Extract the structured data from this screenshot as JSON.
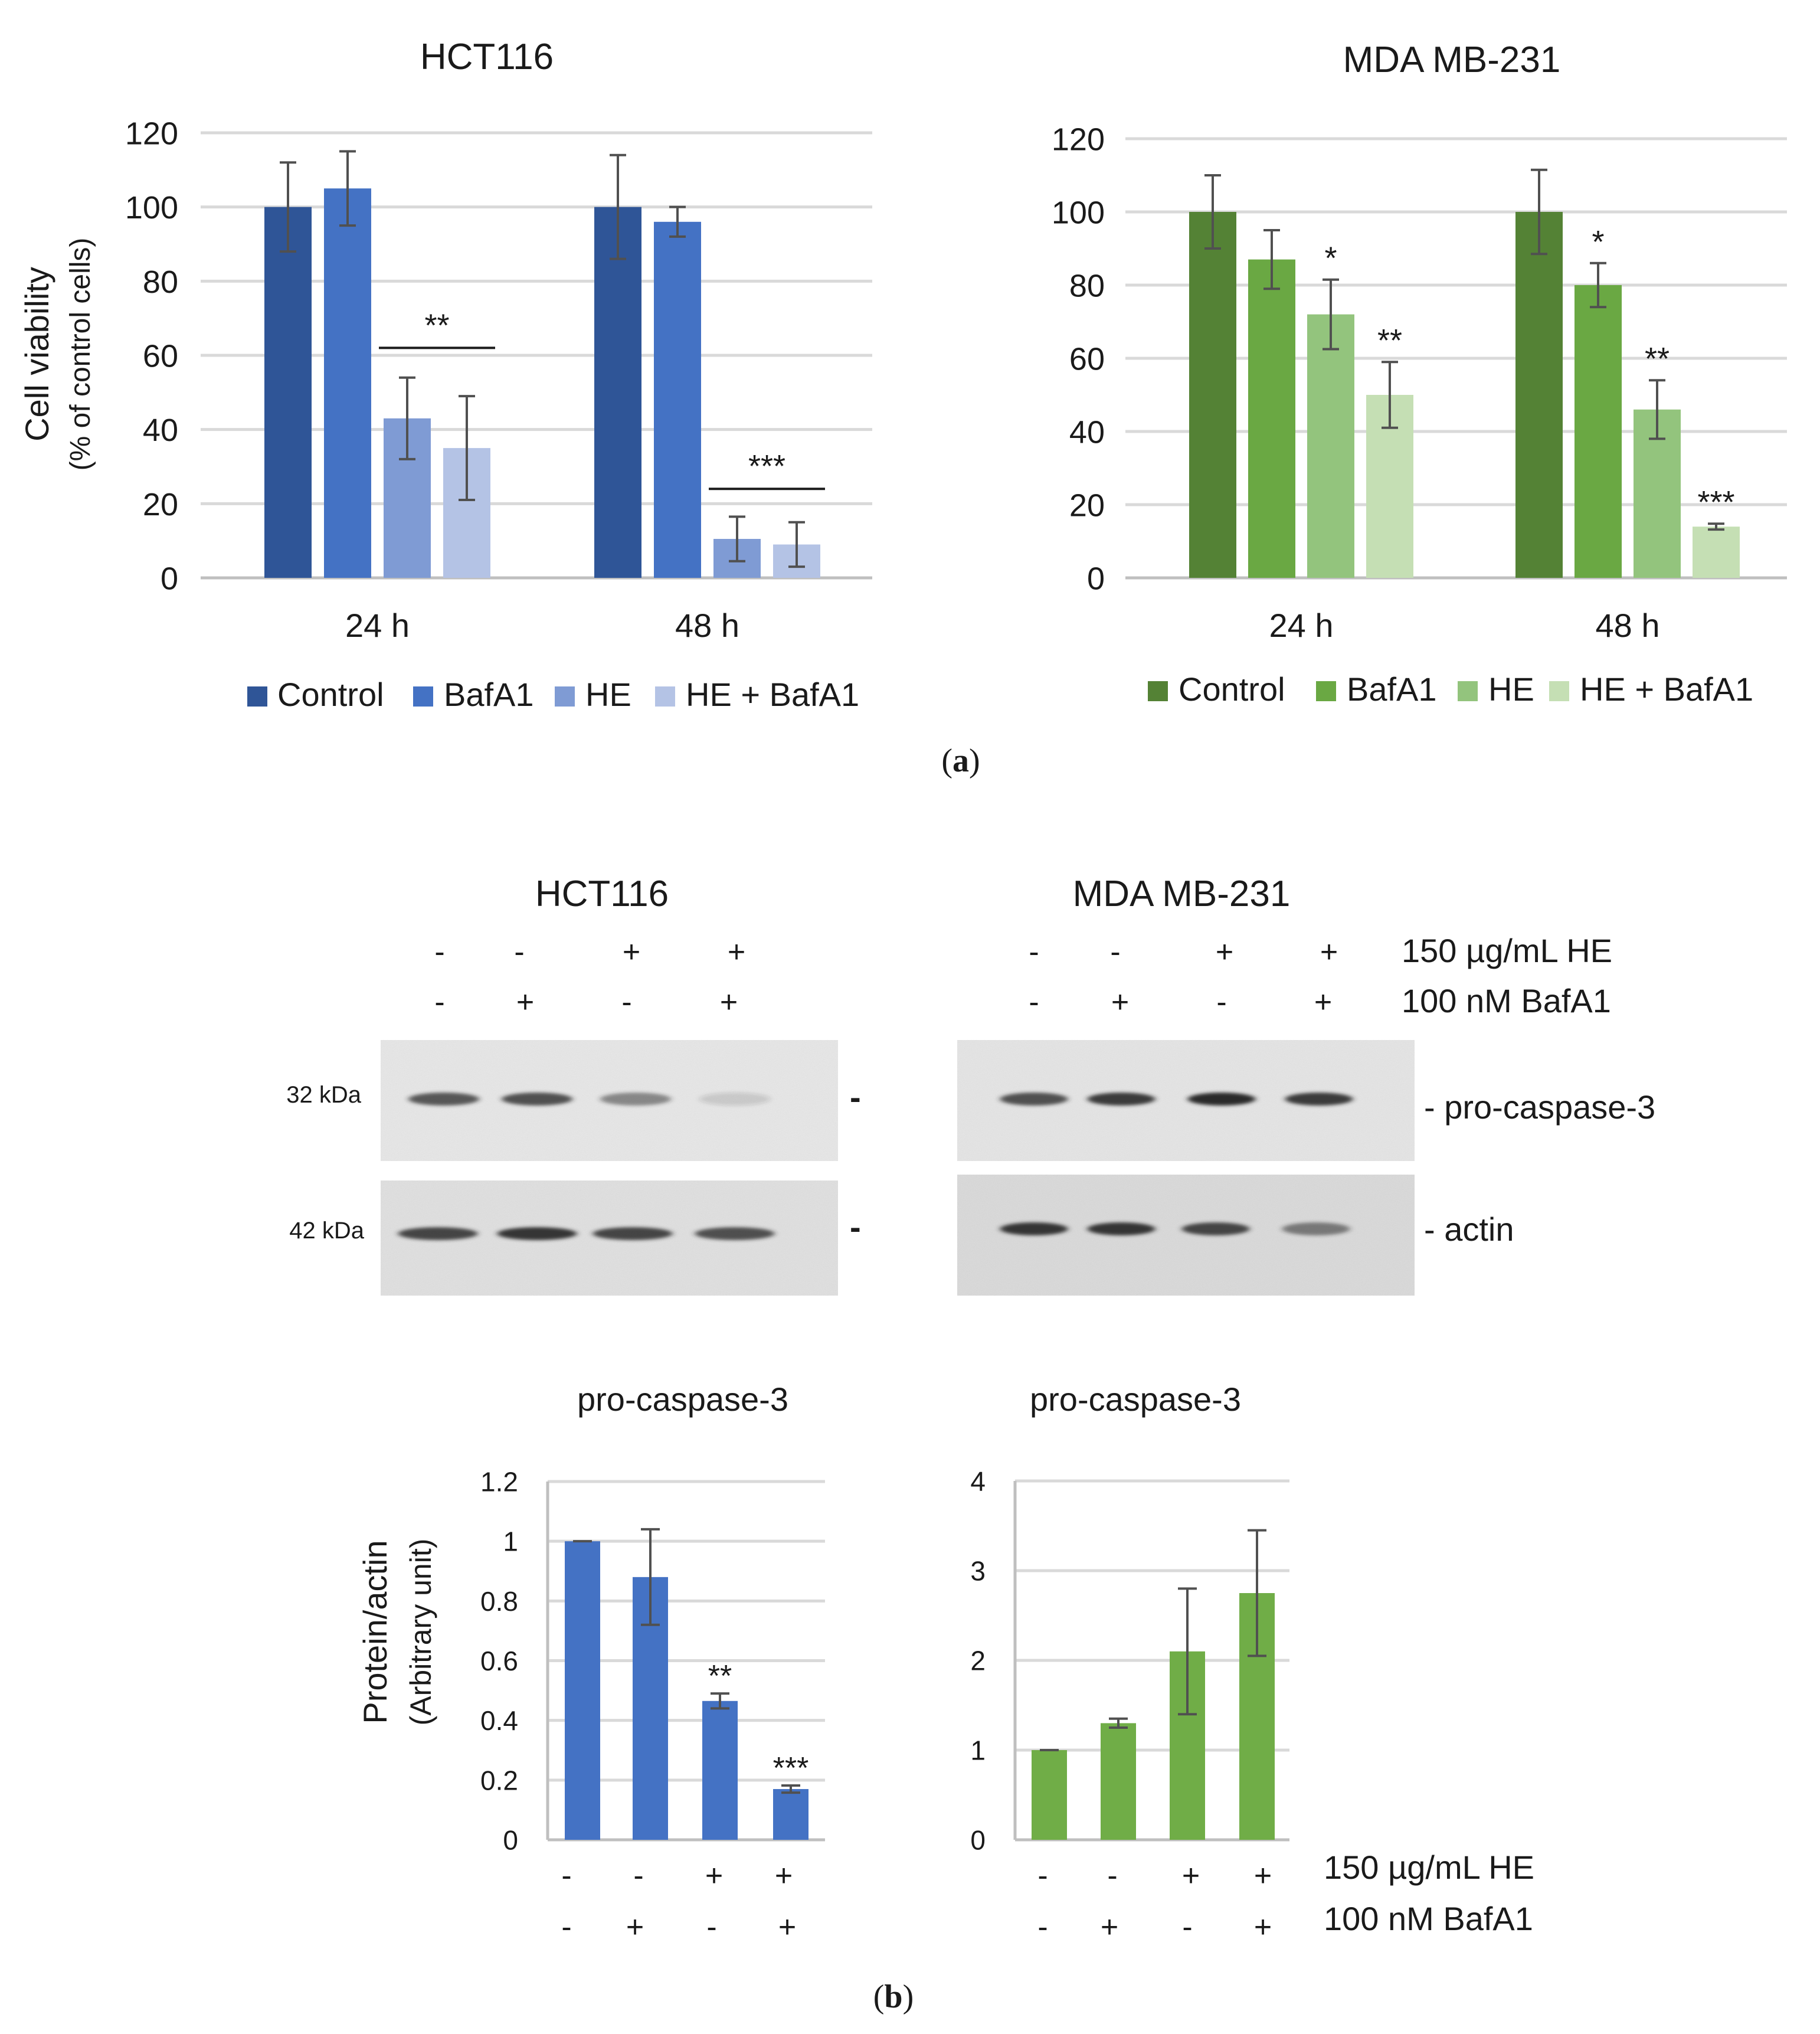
{
  "panel_labels": {
    "a": "(a)",
    "b": "(b)",
    "a_letter": "a",
    "b_letter": "b"
  },
  "colors": {
    "blue": [
      "#2f5597",
      "#4472c4",
      "#7f9bd4",
      "#b4c3e5"
    ],
    "green": [
      "#548235",
      "#6aa843",
      "#93c47d",
      "#c5dfb4"
    ],
    "blue_bar": "#4472c4",
    "green_bar": "#70ad47",
    "blot_bg": "#e6e6e6"
  },
  "chart_data": [
    {
      "id": "a_hct116",
      "type": "bar",
      "title": "HCT116",
      "ylabel": "Cell viability",
      "ylabel2": "(% of control cells)",
      "ylim": [
        0,
        120
      ],
      "yticks": [
        0,
        20,
        40,
        60,
        80,
        100,
        120
      ],
      "categories": [
        "24 h",
        "48 h"
      ],
      "series": [
        {
          "name": "Control",
          "values": [
            100,
            100
          ],
          "errors": [
            12,
            14
          ]
        },
        {
          "name": "BafA1",
          "values": [
            105,
            96
          ],
          "errors": [
            10,
            4
          ]
        },
        {
          "name": "HE",
          "values": [
            43,
            10.5
          ],
          "errors": [
            11,
            6
          ]
        },
        {
          "name": "HE + BafA1",
          "values": [
            35,
            9
          ],
          "errors": [
            14,
            6
          ]
        }
      ],
      "significance": [
        {
          "category": 0,
          "series_from": 2,
          "series_to": 3,
          "label": "**",
          "bracket": true,
          "y": 62
        },
        {
          "category": 1,
          "series_from": 2,
          "series_to": 3,
          "label": "***",
          "bracket": true,
          "y": 24
        }
      ]
    },
    {
      "id": "a_mda",
      "type": "bar",
      "title": "MDA MB-231",
      "ylim": [
        0,
        120
      ],
      "yticks": [
        0,
        20,
        40,
        60,
        80,
        100,
        120
      ],
      "categories": [
        "24 h",
        "48 h"
      ],
      "series": [
        {
          "name": "Control",
          "values": [
            100,
            100
          ],
          "errors": [
            10,
            11.5
          ]
        },
        {
          "name": "BafA1",
          "values": [
            87,
            80
          ],
          "errors": [
            8,
            6
          ]
        },
        {
          "name": "HE",
          "values": [
            72,
            46
          ],
          "errors": [
            9.5,
            8
          ]
        },
        {
          "name": "HE + BafA1",
          "values": [
            50,
            14
          ],
          "errors": [
            9,
            0.8
          ]
        }
      ],
      "significance": [
        {
          "category": 0,
          "series": 2,
          "label": "*"
        },
        {
          "category": 0,
          "series": 3,
          "label": "**"
        },
        {
          "category": 1,
          "series": 1,
          "label": "*"
        },
        {
          "category": 1,
          "series": 2,
          "label": "**"
        },
        {
          "category": 1,
          "series": 3,
          "label": "***"
        }
      ]
    },
    {
      "id": "b_hct116",
      "type": "bar",
      "title": "pro-caspase-3",
      "ylabel": "Protein/actin",
      "ylabel2": "(Arbitrary unit)",
      "ylim": [
        0,
        1.2
      ],
      "yticks": [
        0,
        0.2,
        0.4,
        0.6,
        0.8,
        1,
        1.2
      ],
      "ytick_labels": [
        "0",
        "0.2",
        "0.4",
        "0.6",
        "0.8",
        "1",
        "1.2"
      ],
      "values": [
        1.0,
        0.88,
        0.465,
        0.17
      ],
      "errors": [
        0.0,
        0.16,
        0.025,
        0.012
      ],
      "he_row": [
        "-",
        "-",
        "+",
        "+"
      ],
      "bafa1_row": [
        "-",
        "+",
        "-",
        "+"
      ],
      "stars": [
        "",
        "",
        "**",
        "***"
      ]
    },
    {
      "id": "b_mda",
      "type": "bar",
      "title": "pro-caspase-3",
      "ylim": [
        0,
        4
      ],
      "yticks": [
        0,
        1,
        2,
        3,
        4
      ],
      "ytick_labels": [
        "0",
        "1",
        "2",
        "3",
        "4"
      ],
      "values": [
        1.0,
        1.3,
        2.1,
        2.75
      ],
      "errors": [
        0.0,
        0.05,
        0.7,
        0.7
      ],
      "he_row": [
        "-",
        "-",
        "+",
        "+"
      ],
      "bafa1_row": [
        "-",
        "+",
        "-",
        "+"
      ],
      "row_labels": [
        "150 µg/mL HE",
        "100 nM BafA1"
      ]
    }
  ],
  "blots": {
    "hct116": {
      "title": "HCT116",
      "he_row": [
        "-",
        "-",
        "+",
        "+"
      ],
      "bafa1_row": [
        "-",
        "+",
        "-",
        "+"
      ],
      "mw_labels": [
        "32 kDa",
        "42 kDa"
      ],
      "dashes": [
        "-",
        "-"
      ],
      "band_intensity": {
        "pro_caspase": [
          0.75,
          0.8,
          0.5,
          0.15
        ],
        "actin": [
          0.85,
          0.95,
          0.85,
          0.8
        ]
      }
    },
    "mda": {
      "title": "MDA MB-231",
      "he_row": [
        "-",
        "-",
        "+",
        "+"
      ],
      "bafa1_row": [
        "-",
        "+",
        "-",
        "+"
      ],
      "row_labels": [
        "150 µg/mL HE",
        "100 nM BafA1"
      ],
      "protein_labels": [
        "- pro-caspase-3",
        "- actin"
      ],
      "band_intensity": {
        "pro_caspase": [
          0.8,
          0.9,
          1.0,
          0.9
        ],
        "actin": [
          0.95,
          0.95,
          0.85,
          0.55
        ]
      }
    }
  }
}
